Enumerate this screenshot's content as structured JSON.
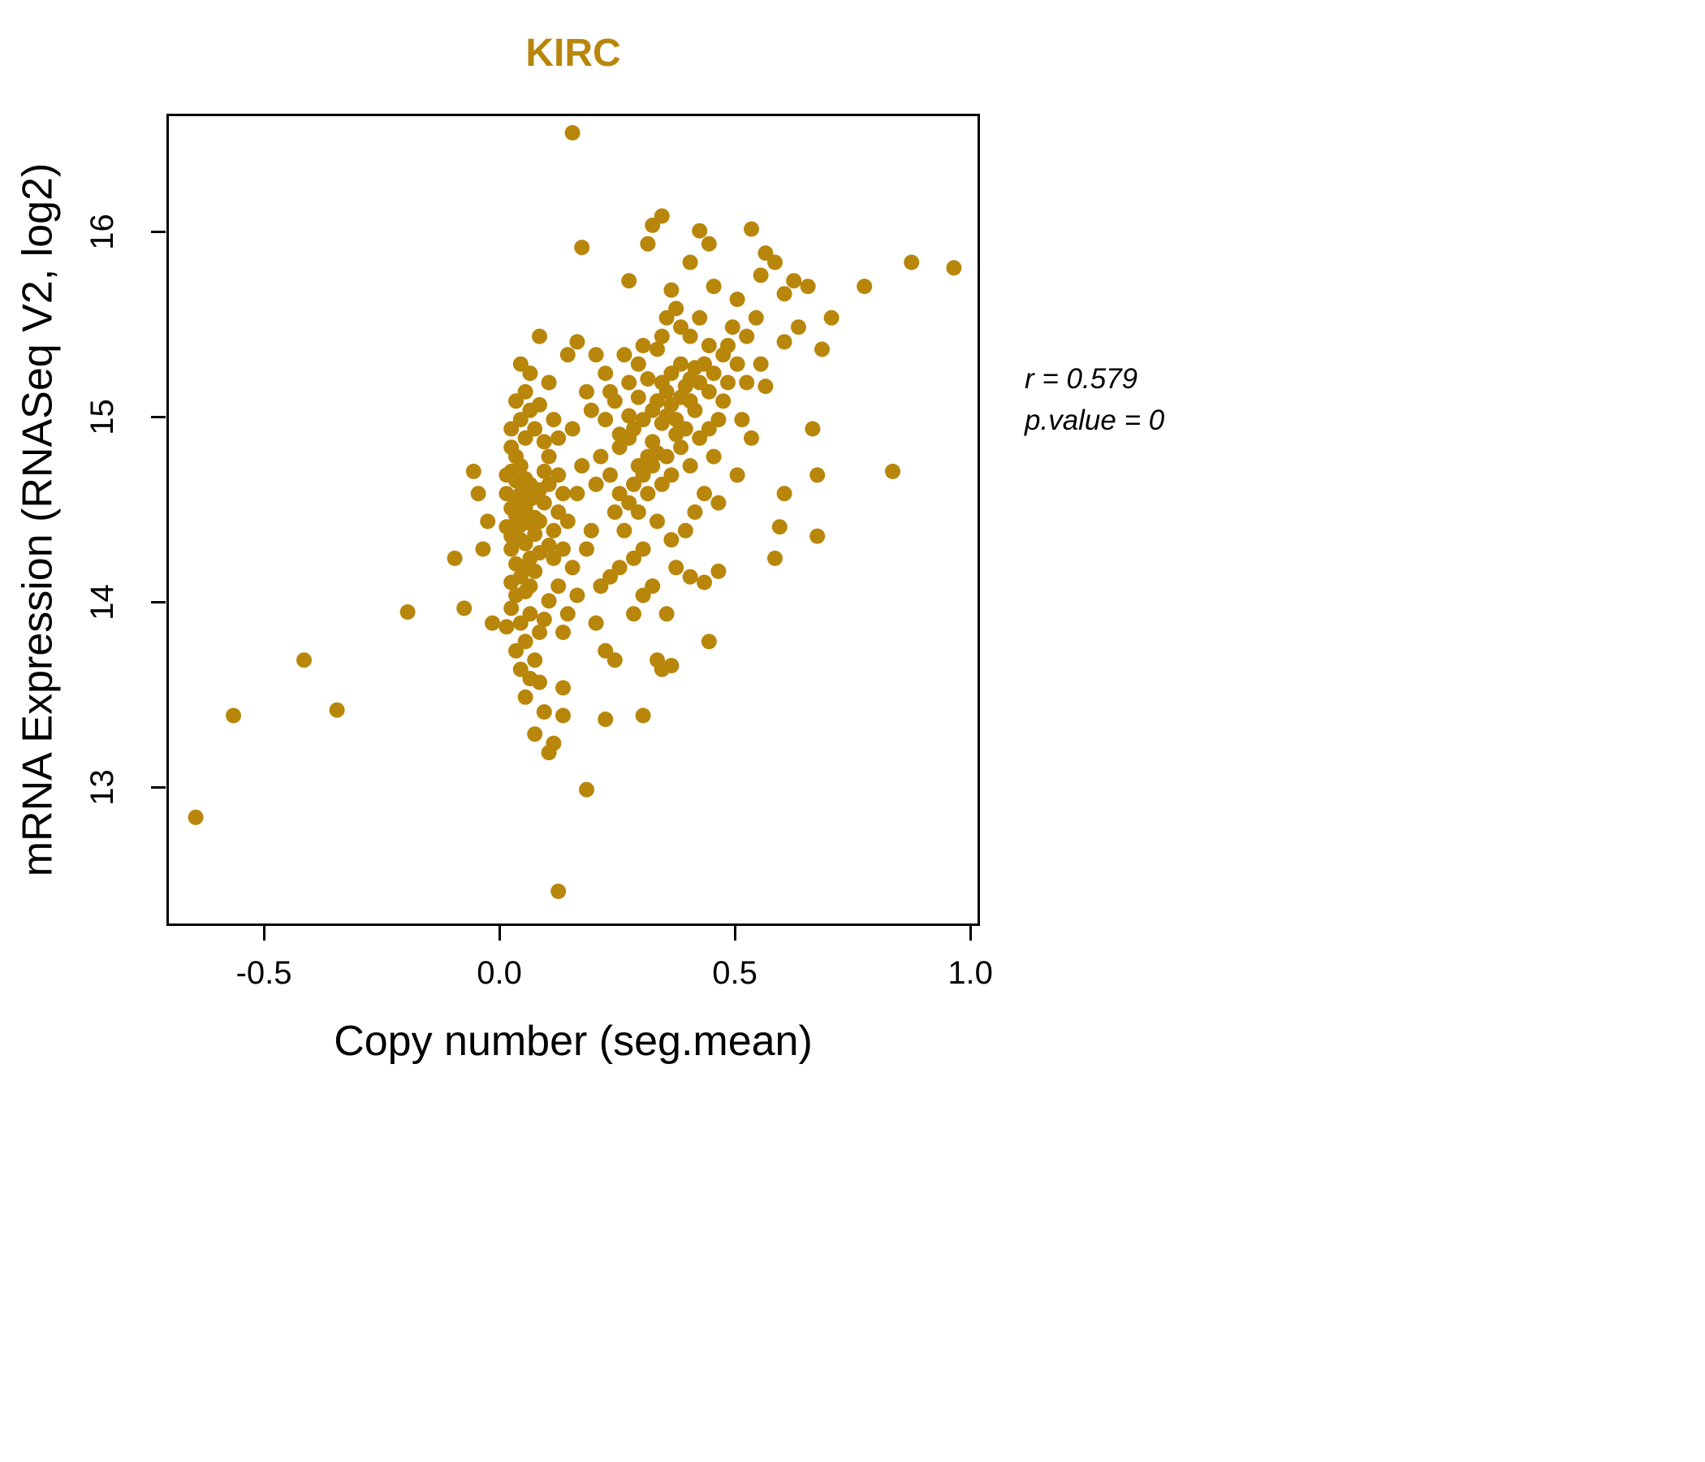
{
  "title": "KIRC",
  "annotation": {
    "line1": "r = 0.579",
    "line2": "p.value = 0"
  },
  "colors": {
    "point": "#B8860B",
    "title": "#B8860B",
    "axis": "#000000"
  },
  "chart_data": {
    "type": "scatter",
    "title": "KIRC",
    "xlabel": "Copy number (seg.mean)",
    "ylabel": "mRNA Expression (RNASeq V2, log2)",
    "x_tick_labels": [
      "-0.5",
      "0.0",
      "0.5",
      "1.0"
    ],
    "x_tick_values": [
      -0.5,
      0.0,
      0.5,
      1.0
    ],
    "y_tick_labels": [
      "13",
      "14",
      "15",
      "16"
    ],
    "y_tick_values": [
      13,
      14,
      15,
      16
    ],
    "xlim": [
      -0.707,
      1.017
    ],
    "ylim": [
      12.25,
      16.64
    ],
    "grid": false,
    "legend": "none",
    "r": 0.579,
    "p_value": 0,
    "point_color": "#B8860B",
    "points": [
      [
        0.02,
        14.72
      ],
      [
        0.03,
        14.55
      ],
      [
        0.04,
        14.6
      ],
      [
        0.05,
        14.48
      ],
      [
        0.06,
        14.65
      ],
      [
        0.03,
        14.4
      ],
      [
        0.04,
        14.35
      ],
      [
        0.05,
        14.52
      ],
      [
        0.06,
        14.44
      ],
      [
        0.07,
        14.58
      ],
      [
        0.02,
        14.3
      ],
      [
        0.08,
        14.62
      ],
      [
        0.04,
        14.75
      ],
      [
        0.05,
        14.68
      ],
      [
        0.03,
        14.8
      ],
      [
        0.06,
        14.25
      ],
      [
        0.07,
        14.38
      ],
      [
        0.05,
        14.2
      ],
      [
        0.04,
        14.15
      ],
      [
        0.06,
        14.1
      ],
      [
        0.03,
        14.05
      ],
      [
        0.08,
        14.45
      ],
      [
        0.09,
        14.55
      ],
      [
        0.1,
        14.65
      ],
      [
        0.02,
        14.85
      ],
      [
        0.01,
        14.7
      ],
      [
        0.05,
        14.9
      ],
      [
        0.07,
        14.95
      ],
      [
        0.04,
        15.0
      ],
      [
        0.06,
        15.05
      ],
      [
        0.03,
        15.1
      ],
      [
        0.05,
        15.15
      ],
      [
        0.08,
        15.08
      ],
      [
        0.02,
        14.95
      ],
      [
        0.09,
        14.88
      ],
      [
        0.01,
        14.42
      ],
      [
        0.1,
        14.32
      ],
      [
        0.03,
        14.22
      ],
      [
        0.07,
        14.18
      ],
      [
        0.02,
        14.12
      ],
      [
        0.06,
        13.95
      ],
      [
        0.04,
        13.9
      ],
      [
        0.08,
        13.85
      ],
      [
        0.05,
        13.8
      ],
      [
        0.03,
        13.75
      ],
      [
        0.09,
        13.92
      ],
      [
        0.01,
        13.88
      ],
      [
        0.07,
        13.7
      ],
      [
        0.1,
        14.02
      ],
      [
        0.02,
        13.98
      ],
      [
        0.05,
        14.07
      ],
      [
        0.04,
        13.65
      ],
      [
        0.06,
        13.6
      ],
      [
        0.12,
        14.5
      ],
      [
        0.11,
        14.4
      ],
      [
        0.13,
        14.6
      ],
      [
        0.12,
        14.7
      ],
      [
        0.11,
        14.25
      ],
      [
        0.14,
        14.45
      ],
      [
        0.13,
        14.3
      ],
      [
        0.12,
        14.9
      ],
      [
        0.11,
        15.0
      ],
      [
        0.1,
        15.2
      ],
      [
        0.06,
        15.25
      ],
      [
        0.04,
        15.3
      ],
      [
        0.08,
        15.45
      ],
      [
        0.16,
        15.42
      ],
      [
        0.05,
        13.5
      ],
      [
        0.09,
        13.42
      ],
      [
        0.07,
        13.3
      ],
      [
        0.11,
        13.25
      ],
      [
        0.13,
        13.4
      ],
      [
        0.03,
        14.67
      ],
      [
        0.05,
        14.63
      ],
      [
        0.07,
        14.47
      ],
      [
        0.02,
        14.52
      ],
      [
        0.06,
        14.57
      ],
      [
        0.04,
        14.43
      ],
      [
        0.08,
        14.28
      ],
      [
        0.01,
        14.6
      ],
      [
        0.09,
        14.72
      ],
      [
        0.1,
        14.8
      ],
      [
        0.12,
        14.1
      ],
      [
        0.14,
        13.95
      ],
      [
        0.15,
        14.2
      ],
      [
        0.16,
        14.05
      ],
      [
        0.13,
        13.85
      ],
      [
        0.02,
        14.37
      ],
      [
        0.03,
        14.48
      ],
      [
        0.05,
        14.33
      ],
      [
        0.25,
        14.85
      ],
      [
        0.27,
        14.9
      ],
      [
        0.3,
        15.0
      ],
      [
        0.32,
        15.05
      ],
      [
        0.28,
        14.95
      ],
      [
        0.33,
        15.1
      ],
      [
        0.35,
        15.15
      ],
      [
        0.31,
        14.8
      ],
      [
        0.29,
        14.75
      ],
      [
        0.34,
        15.2
      ],
      [
        0.36,
        15.25
      ],
      [
        0.38,
        15.3
      ],
      [
        0.37,
        15.0
      ],
      [
        0.4,
        15.1
      ],
      [
        0.42,
        15.2
      ],
      [
        0.41,
        15.05
      ],
      [
        0.39,
        14.95
      ],
      [
        0.43,
        15.3
      ],
      [
        0.44,
        15.15
      ],
      [
        0.45,
        15.25
      ],
      [
        0.26,
        15.35
      ],
      [
        0.3,
        15.4
      ],
      [
        0.34,
        15.45
      ],
      [
        0.38,
        15.5
      ],
      [
        0.35,
        15.55
      ],
      [
        0.4,
        15.45
      ],
      [
        0.42,
        15.55
      ],
      [
        0.37,
        15.6
      ],
      [
        0.33,
        15.38
      ],
      [
        0.29,
        15.3
      ],
      [
        0.27,
        15.2
      ],
      [
        0.24,
        15.1
      ],
      [
        0.22,
        15.0
      ],
      [
        0.23,
        14.7
      ],
      [
        0.25,
        14.6
      ],
      [
        0.28,
        14.65
      ],
      [
        0.3,
        14.7
      ],
      [
        0.32,
        14.75
      ],
      [
        0.27,
        14.55
      ],
      [
        0.29,
        14.5
      ],
      [
        0.31,
        14.6
      ],
      [
        0.34,
        14.65
      ],
      [
        0.36,
        14.7
      ],
      [
        0.35,
        14.8
      ],
      [
        0.38,
        14.85
      ],
      [
        0.4,
        14.75
      ],
      [
        0.42,
        14.9
      ],
      [
        0.44,
        14.95
      ],
      [
        0.46,
        15.0
      ],
      [
        0.47,
        15.1
      ],
      [
        0.48,
        15.2
      ],
      [
        0.45,
        14.8
      ],
      [
        0.43,
        14.6
      ],
      [
        0.41,
        14.5
      ],
      [
        0.39,
        14.4
      ],
      [
        0.36,
        14.35
      ],
      [
        0.33,
        14.45
      ],
      [
        0.3,
        14.3
      ],
      [
        0.28,
        14.25
      ],
      [
        0.26,
        14.4
      ],
      [
        0.24,
        14.5
      ],
      [
        0.21,
        14.8
      ],
      [
        0.2,
        14.65
      ],
      [
        0.19,
        15.05
      ],
      [
        0.22,
        15.25
      ],
      [
        0.2,
        15.35
      ],
      [
        0.48,
        15.4
      ],
      [
        0.5,
        15.3
      ],
      [
        0.52,
        15.2
      ],
      [
        0.51,
        15.0
      ],
      [
        0.53,
        14.9
      ],
      [
        0.5,
        14.7
      ],
      [
        0.46,
        14.55
      ],
      [
        0.49,
        15.5
      ],
      [
        0.44,
        15.4
      ],
      [
        0.31,
        15.22
      ],
      [
        0.35,
        15.02
      ],
      [
        0.37,
        14.92
      ],
      [
        0.32,
        14.88
      ],
      [
        0.34,
        14.98
      ],
      [
        0.36,
        15.08
      ],
      [
        0.38,
        15.12
      ],
      [
        0.4,
        15.22
      ],
      [
        0.29,
        15.12
      ],
      [
        0.27,
        15.02
      ],
      [
        0.25,
        14.92
      ],
      [
        0.23,
        15.15
      ],
      [
        0.33,
        14.82
      ],
      [
        0.39,
        15.18
      ],
      [
        0.41,
        15.28
      ],
      [
        0.32,
        16.05
      ],
      [
        0.34,
        16.1
      ],
      [
        0.31,
        15.95
      ],
      [
        0.42,
        16.02
      ],
      [
        0.44,
        15.95
      ],
      [
        0.4,
        15.85
      ],
      [
        0.53,
        16.03
      ],
      [
        0.56,
        15.9
      ],
      [
        0.58,
        15.85
      ],
      [
        0.55,
        15.78
      ],
      [
        0.27,
        15.75
      ],
      [
        0.17,
        15.93
      ],
      [
        0.36,
        15.7
      ],
      [
        0.45,
        15.72
      ],
      [
        0.5,
        15.65
      ],
      [
        0.6,
        15.68
      ],
      [
        0.62,
        15.75
      ],
      [
        0.65,
        15.72
      ],
      [
        0.6,
        15.42
      ],
      [
        0.63,
        15.5
      ],
      [
        0.7,
        15.55
      ],
      [
        0.68,
        15.38
      ],
      [
        0.77,
        15.72
      ],
      [
        0.87,
        15.85
      ],
      [
        0.96,
        15.82
      ],
      [
        0.66,
        14.95
      ],
      [
        0.67,
        14.7
      ],
      [
        0.83,
        14.72
      ],
      [
        0.6,
        14.6
      ],
      [
        0.59,
        14.42
      ],
      [
        0.67,
        14.37
      ],
      [
        0.58,
        14.25
      ],
      [
        0.21,
        14.1
      ],
      [
        0.23,
        14.15
      ],
      [
        0.25,
        14.2
      ],
      [
        0.18,
        14.3
      ],
      [
        0.16,
        14.6
      ],
      [
        0.17,
        14.75
      ],
      [
        0.15,
        14.95
      ],
      [
        0.18,
        15.15
      ],
      [
        0.14,
        15.35
      ],
      [
        0.19,
        14.4
      ],
      [
        0.2,
        13.9
      ],
      [
        0.22,
        13.75
      ],
      [
        0.24,
        13.7
      ],
      [
        0.28,
        13.95
      ],
      [
        0.3,
        14.05
      ],
      [
        0.33,
        13.7
      ],
      [
        0.34,
        13.65
      ],
      [
        0.36,
        13.67
      ],
      [
        0.32,
        14.1
      ],
      [
        0.35,
        13.95
      ],
      [
        0.37,
        14.2
      ],
      [
        0.4,
        14.15
      ],
      [
        0.43,
        14.12
      ],
      [
        0.46,
        14.18
      ],
      [
        0.44,
        13.8
      ],
      [
        0.3,
        13.4
      ],
      [
        0.22,
        13.38
      ],
      [
        0.18,
        13.0
      ],
      [
        0.12,
        12.45
      ],
      [
        0.1,
        13.2
      ],
      [
        0.13,
        13.55
      ],
      [
        0.08,
        13.58
      ],
      [
        -0.65,
        12.85
      ],
      [
        -0.57,
        13.4
      ],
      [
        -0.42,
        13.7
      ],
      [
        -0.35,
        13.43
      ],
      [
        -0.2,
        13.96
      ],
      [
        -0.1,
        14.25
      ],
      [
        -0.08,
        13.98
      ],
      [
        -0.05,
        14.6
      ],
      [
        -0.03,
        14.45
      ],
      [
        -0.04,
        14.3
      ],
      [
        -0.06,
        14.72
      ],
      [
        -0.02,
        13.9
      ],
      [
        0.15,
        16.55
      ],
      [
        0.47,
        15.35
      ],
      [
        0.52,
        15.45
      ],
      [
        0.55,
        15.3
      ],
      [
        0.56,
        15.18
      ],
      [
        0.54,
        15.55
      ]
    ]
  }
}
